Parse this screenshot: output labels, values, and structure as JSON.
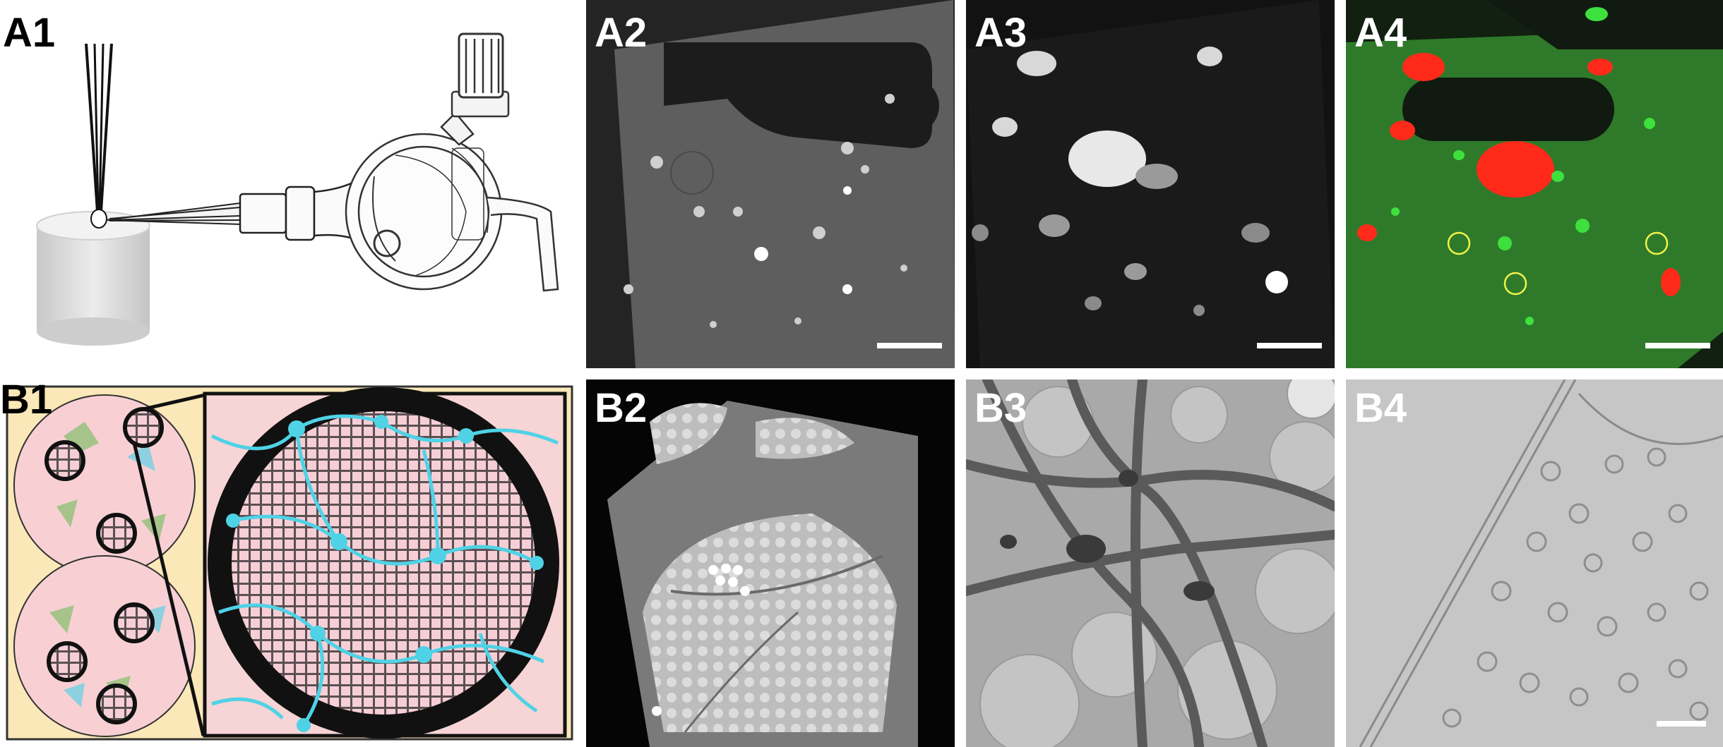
{
  "figure": {
    "panels": [
      {
        "id": "A1",
        "label": "A1",
        "kind": "schematic-microinjection"
      },
      {
        "id": "A2",
        "label": "A2",
        "kind": "grid-brightfield",
        "scale_bar": true
      },
      {
        "id": "A3",
        "label": "A3",
        "kind": "fluorescence-gray",
        "scale_bar": true
      },
      {
        "id": "A4",
        "label": "A4",
        "kind": "fluorescence-overlay",
        "scale_bar": true
      },
      {
        "id": "B1",
        "label": "B1",
        "kind": "schematic-culture-grid"
      },
      {
        "id": "B2",
        "label": "B2",
        "kind": "grid-square-lowmag"
      },
      {
        "id": "B3",
        "label": "B3",
        "kind": "em-neurites"
      },
      {
        "id": "B4",
        "label": "B4",
        "kind": "tomogram-slice",
        "scale_bar": true
      }
    ],
    "colors": {
      "panel_label_dark": "#000000",
      "panel_label_light": "#ffffff",
      "b1_background": "#fbe8b8",
      "well_pink": "#f8d0d4",
      "neuron_cyan": "#4fd2e6",
      "glia_green": "#a6c48a",
      "a4_green": "#2f7a2a",
      "a4_red": "#ff2a1a",
      "a4_circle": "#f2f24a"
    }
  }
}
